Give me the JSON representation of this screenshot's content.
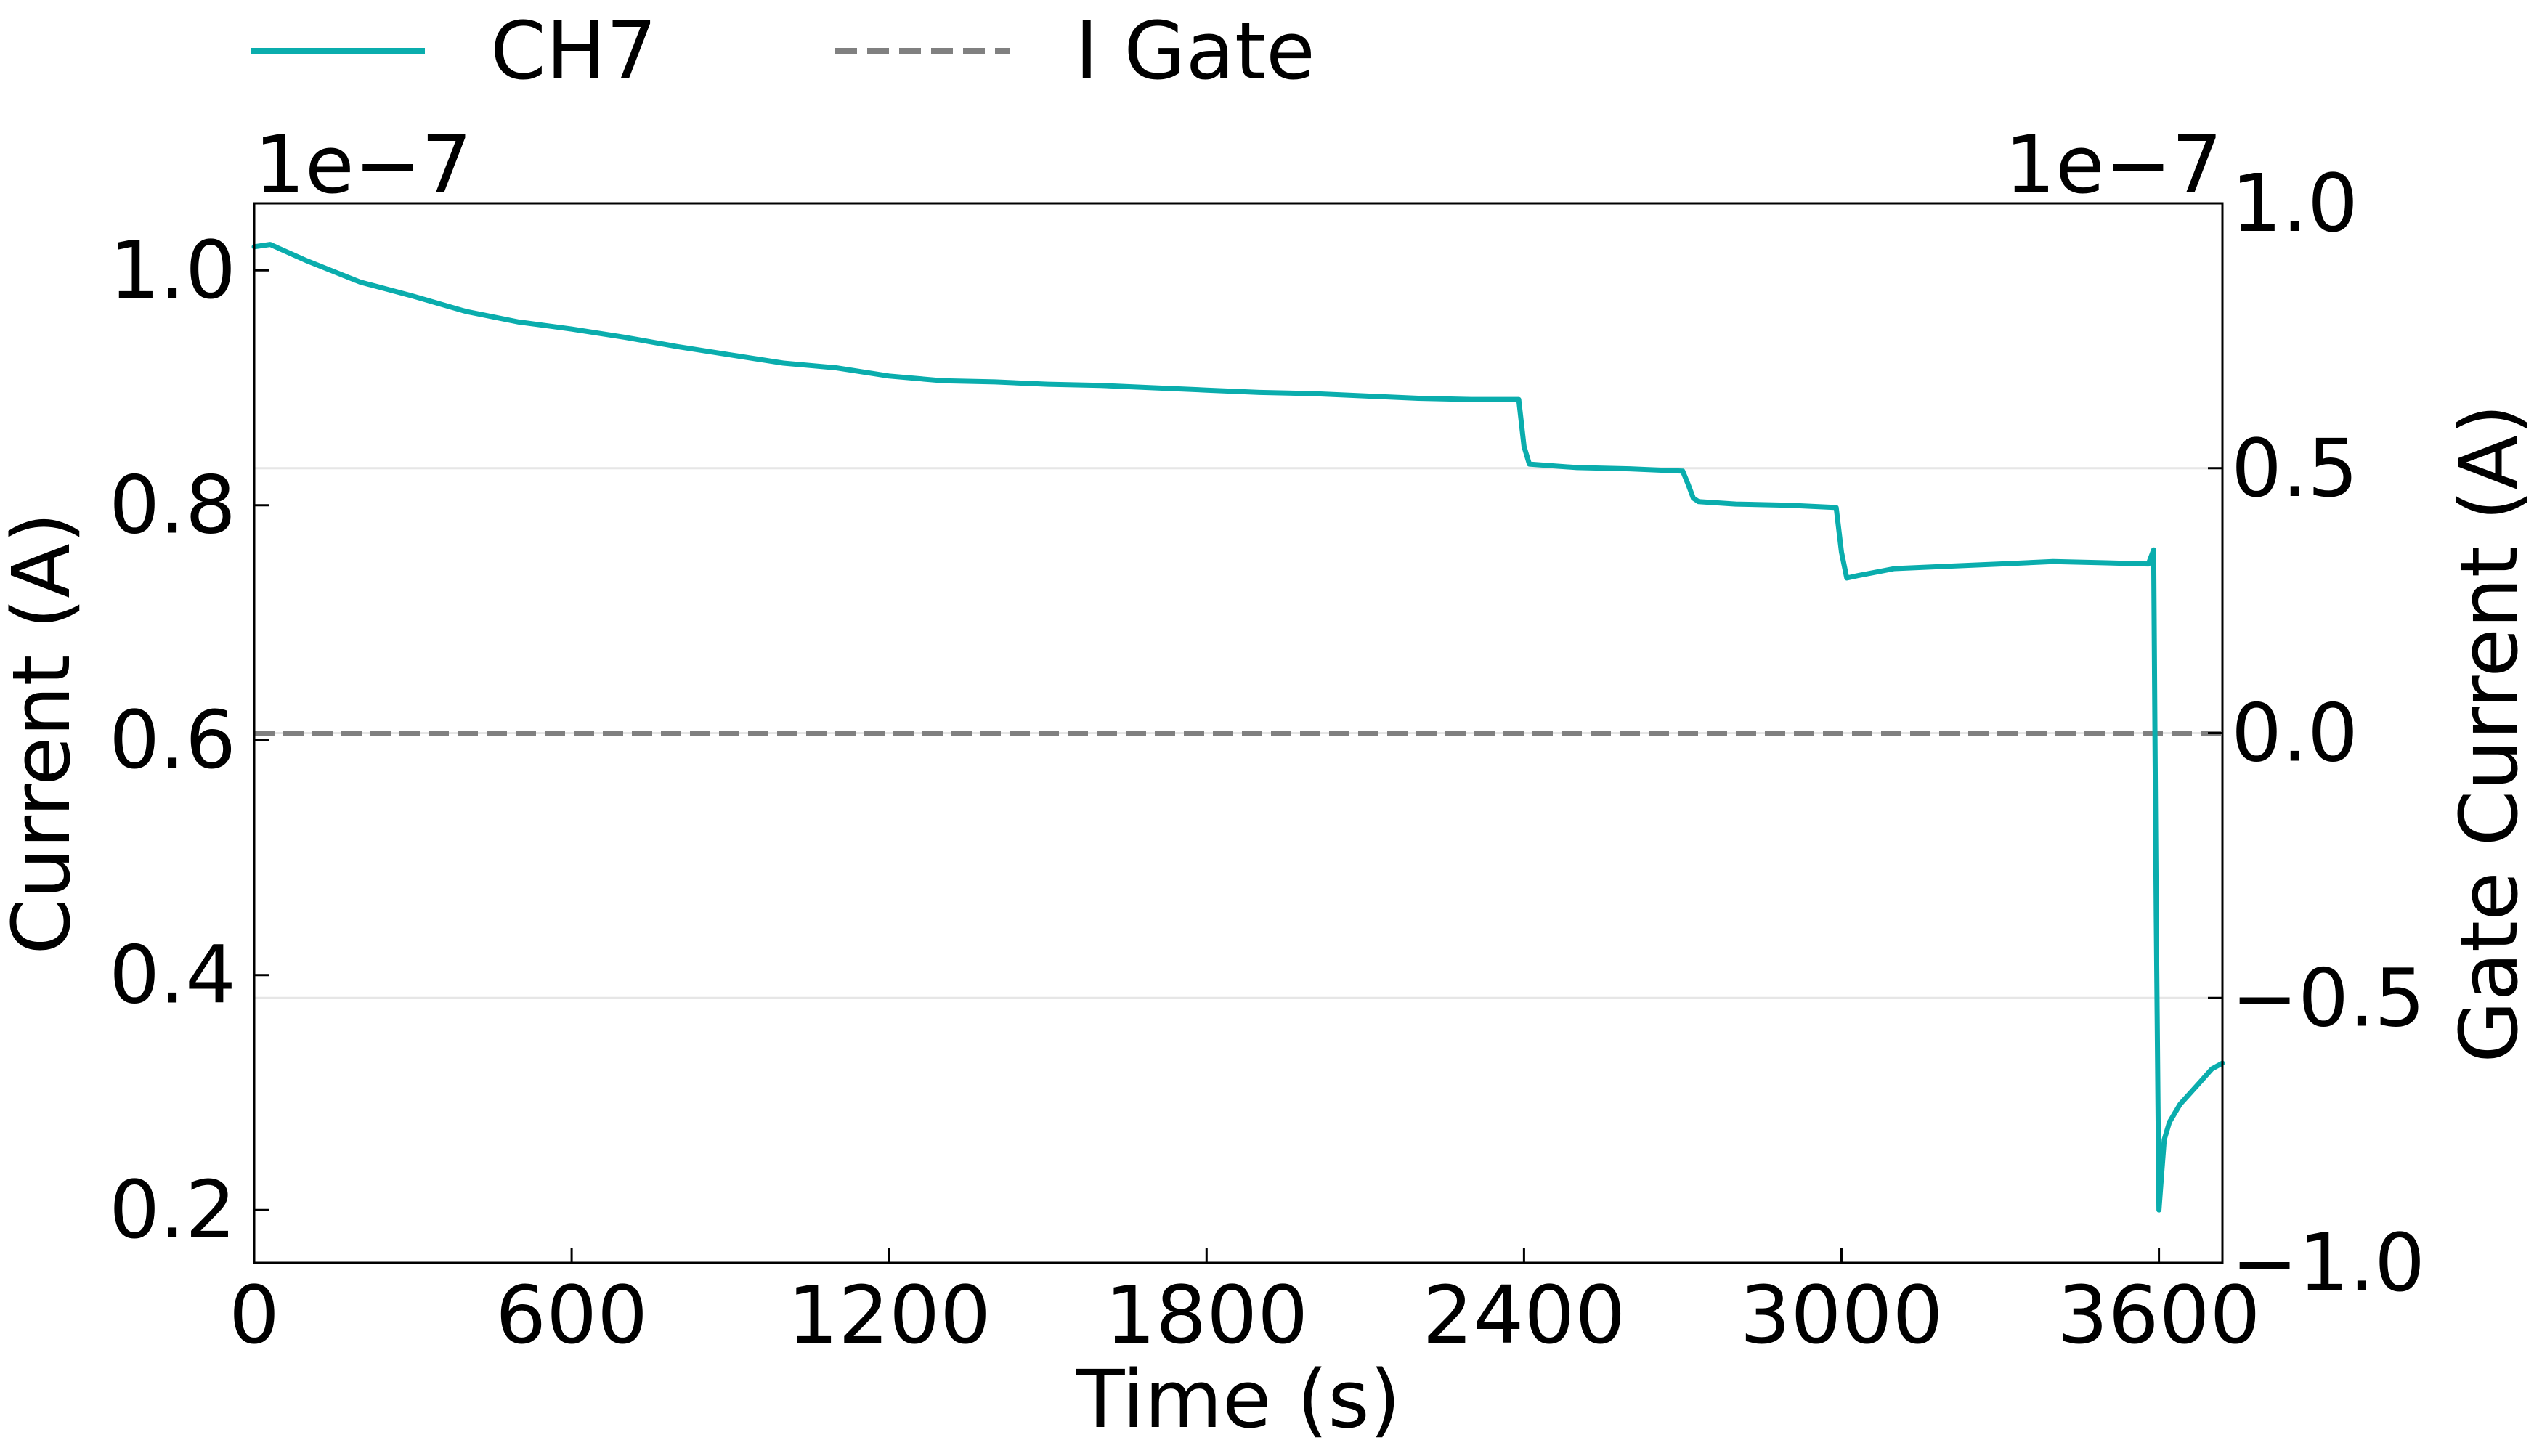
{
  "chart_data": {
    "type": "line",
    "xlabel": "Time (s)",
    "ylabel": "Current (A)",
    "y2label": "Gate Current (A)",
    "left_offset_text": "1e−7",
    "right_offset_text": "1e−7",
    "xlim": [
      0,
      3720
    ],
    "ylim": [
      0.155,
      1.057
    ],
    "y2lim": [
      -1.0,
      1.0
    ],
    "x_ticks": [
      0,
      600,
      1200,
      1800,
      2400,
      3000,
      3600
    ],
    "x_tick_labels": [
      "0",
      "600",
      "1200",
      "1800",
      "2400",
      "3000",
      "3600"
    ],
    "y_ticks": [
      0.2,
      0.4,
      0.6,
      0.8,
      1.0
    ],
    "y_tick_labels": [
      "0.2",
      "0.4",
      "0.6",
      "0.8",
      "1.0"
    ],
    "y2_ticks": [
      -1.0,
      -0.5,
      0.0,
      0.5,
      1.0
    ],
    "y2_tick_labels": [
      "−1.0",
      "−0.5",
      "0.0",
      "0.5",
      "1.0"
    ],
    "grid_y2": true,
    "legend_position": "top-left, outside plot",
    "series": [
      {
        "name": "CH7",
        "axis": "left",
        "color": "#0aadad",
        "style": "solid",
        "x": [
          0,
          30,
          100,
          200,
          300,
          400,
          500,
          600,
          700,
          800,
          900,
          1000,
          1100,
          1200,
          1300,
          1400,
          1500,
          1600,
          1700,
          1800,
          1900,
          2000,
          2100,
          2200,
          2300,
          2390,
          2400,
          2410,
          2500,
          2600,
          2700,
          2710,
          2720,
          2730,
          2800,
          2900,
          2990,
          3000,
          3010,
          3030,
          3100,
          3200,
          3300,
          3400,
          3500,
          3580,
          3590,
          3595,
          3600,
          3605,
          3610,
          3620,
          3640,
          3660,
          3680,
          3700,
          3720
        ],
        "values": [
          1.02,
          1.022,
          1.008,
          0.99,
          0.978,
          0.965,
          0.956,
          0.95,
          0.943,
          0.935,
          0.928,
          0.921,
          0.917,
          0.91,
          0.906,
          0.905,
          0.903,
          0.902,
          0.9,
          0.898,
          0.896,
          0.895,
          0.893,
          0.891,
          0.89,
          0.89,
          0.85,
          0.835,
          0.832,
          0.831,
          0.829,
          0.818,
          0.806,
          0.803,
          0.801,
          0.8,
          0.798,
          0.76,
          0.738,
          0.74,
          0.746,
          0.748,
          0.75,
          0.752,
          0.751,
          0.75,
          0.762,
          0.45,
          0.2,
          0.23,
          0.26,
          0.275,
          0.29,
          0.3,
          0.31,
          0.32,
          0.325
        ]
      },
      {
        "name": "I Gate",
        "axis": "right",
        "color": "#808080",
        "style": "dashed",
        "x": [
          0,
          3720
        ],
        "values": [
          0.0,
          0.0
        ]
      }
    ]
  }
}
